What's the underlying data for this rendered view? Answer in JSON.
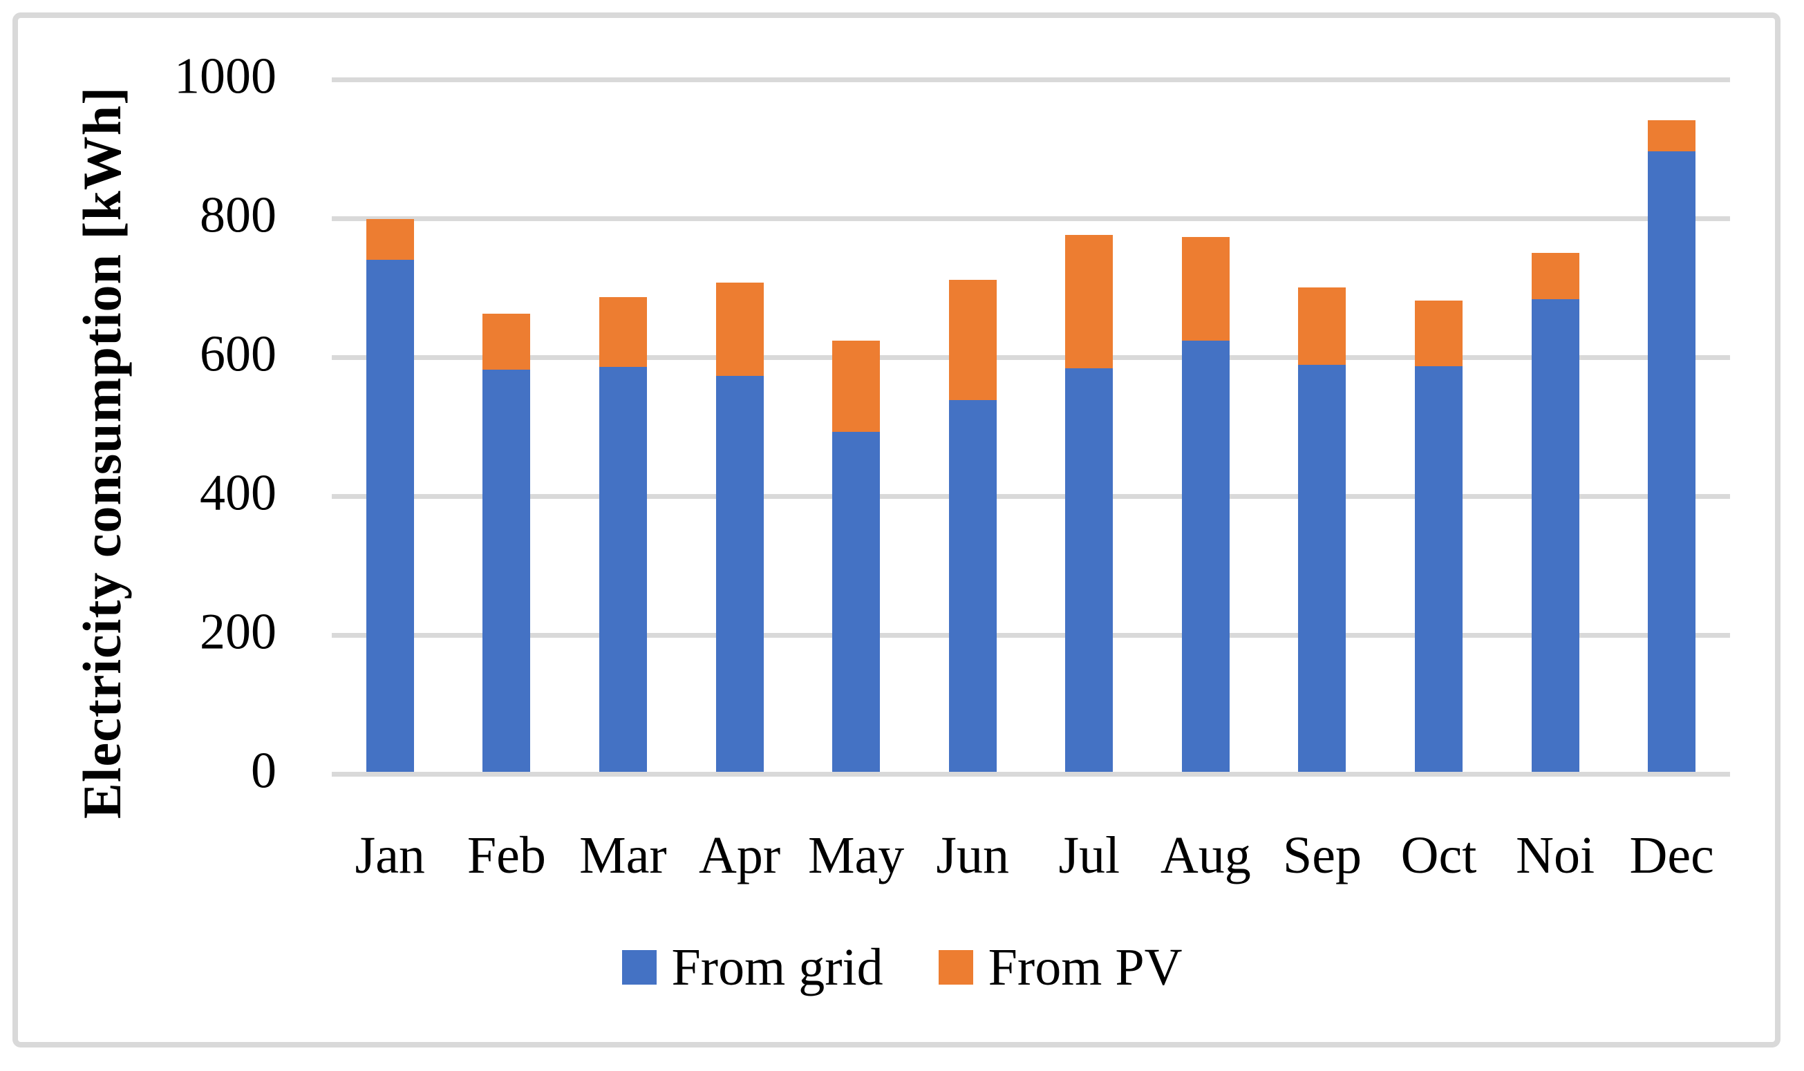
{
  "chart_data": {
    "type": "bar",
    "stacked": true,
    "title": "",
    "xlabel": "",
    "ylabel": "Electricity consumption [kWh]",
    "categories": [
      "Jan",
      "Feb",
      "Mar",
      "Apr",
      "May",
      "Jun",
      "Jul",
      "Aug",
      "Sep",
      "Oct",
      "Noi",
      "Dec"
    ],
    "series": [
      {
        "name": "From grid",
        "color": "#4472C4",
        "values": [
          737,
          579,
          583,
          570,
          490,
          535,
          581,
          621,
          586,
          584,
          681,
          894
        ]
      },
      {
        "name": "From PV",
        "color": "#ED7D31",
        "values": [
          59,
          81,
          100,
          134,
          131,
          173,
          192,
          149,
          111,
          95,
          67,
          45
        ]
      }
    ],
    "totals": [
      796,
      660,
      683,
      704,
      621,
      708,
      773,
      770,
      697,
      679,
      748,
      939
    ],
    "ylim": [
      0,
      1000
    ],
    "yticks": [
      0,
      200,
      400,
      600,
      800,
      1000
    ],
    "grid": true,
    "legend_position": "bottom"
  },
  "style": {
    "gridline_color": "#D9D9D9",
    "frame_color": "#D9D9D9",
    "text_color": "#000000",
    "background_color": "#FFFFFF"
  }
}
